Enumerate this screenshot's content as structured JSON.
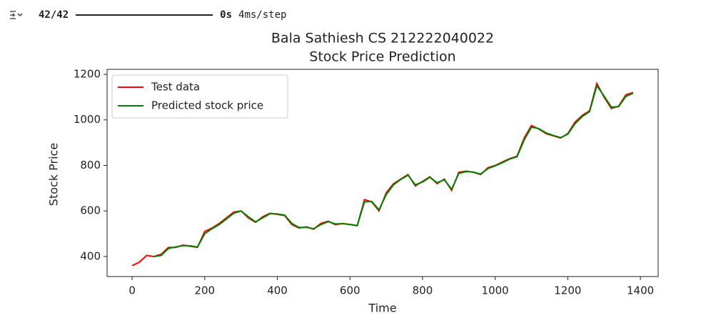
{
  "output": {
    "progress": "42/42",
    "elapsed": "0s",
    "rate": "4ms/step"
  },
  "chart_data": {
    "type": "line",
    "title": [
      "Bala Sathiesh CS 212222040022",
      "Stock Price Prediction"
    ],
    "xlabel": "Time",
    "ylabel": "Stock Price",
    "x": [
      0,
      20,
      40,
      60,
      80,
      100,
      120,
      140,
      160,
      180,
      200,
      220,
      240,
      260,
      280,
      300,
      320,
      340,
      360,
      380,
      400,
      420,
      440,
      460,
      480,
      500,
      520,
      540,
      560,
      580,
      600,
      620,
      640,
      660,
      680,
      700,
      720,
      740,
      760,
      780,
      800,
      820,
      840,
      860,
      880,
      900,
      920,
      940,
      960,
      980,
      1000,
      1020,
      1040,
      1060,
      1080,
      1100,
      1120,
      1140,
      1160,
      1180,
      1200,
      1220,
      1240,
      1260,
      1280,
      1300,
      1320,
      1340,
      1360,
      1380
    ],
    "series": [
      {
        "name": "Test data",
        "color": "#ff0000",
        "values": [
          360,
          375,
          405,
          400,
          410,
          440,
          440,
          450,
          445,
          440,
          510,
          525,
          545,
          570,
          595,
          600,
          570,
          550,
          575,
          590,
          585,
          580,
          540,
          525,
          530,
          520,
          545,
          555,
          540,
          545,
          540,
          535,
          650,
          640,
          600,
          680,
          720,
          740,
          760,
          710,
          730,
          750,
          720,
          740,
          690,
          770,
          775,
          770,
          760,
          790,
          800,
          815,
          830,
          840,
          920,
          975,
          960,
          940,
          930,
          920,
          940,
          990,
          1020,
          1040,
          1160,
          1100,
          1050,
          1060,
          1110,
          1120
        ]
      },
      {
        "name": "Predicted stock price",
        "color": "#008000",
        "values": [
          null,
          null,
          null,
          400,
          405,
          435,
          442,
          448,
          447,
          442,
          500,
          522,
          540,
          565,
          590,
          600,
          575,
          552,
          570,
          588,
          587,
          582,
          545,
          528,
          528,
          522,
          540,
          553,
          543,
          544,
          541,
          536,
          640,
          642,
          605,
          672,
          715,
          738,
          757,
          715,
          727,
          748,
          724,
          737,
          695,
          765,
          773,
          771,
          762,
          786,
          798,
          812,
          828,
          838,
          912,
          968,
          962,
          943,
          932,
          922,
          937,
          983,
          1015,
          1036,
          1150,
          1105,
          1056,
          1058,
          1103,
          1117
        ]
      }
    ],
    "xlim": [
      -69,
      1449
    ],
    "ylim": [
      312,
      1222
    ],
    "xticks": [
      0,
      200,
      400,
      600,
      800,
      1000,
      1200,
      1400
    ],
    "yticks": [
      400,
      600,
      800,
      1000,
      1200
    ],
    "legend": "upper left",
    "grid": false
  }
}
